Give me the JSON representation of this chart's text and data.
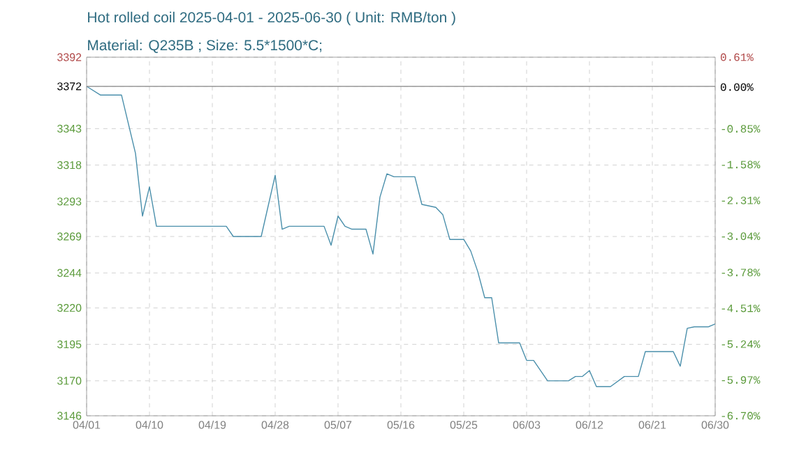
{
  "chart_data": {
    "type": "line",
    "title": "Hot rolled coil 2025-04-01 - 2025-06-30 ( Unit: RMB/ton )",
    "subtitle": "Material: Q235B ; Size: 5.5*1500*C;",
    "x": [
      "2025-04-01",
      "2025-04-03",
      "2025-04-06",
      "2025-04-08",
      "2025-04-09",
      "2025-04-10",
      "2025-04-11",
      "2025-04-21",
      "2025-04-22",
      "2025-04-26",
      "2025-04-28",
      "2025-04-29",
      "2025-04-30",
      "2025-05-05",
      "2025-05-06",
      "2025-05-07",
      "2025-05-08",
      "2025-05-09",
      "2025-05-11",
      "2025-05-12",
      "2025-05-13",
      "2025-05-14",
      "2025-05-15",
      "2025-05-18",
      "2025-05-19",
      "2025-05-21",
      "2025-05-22",
      "2025-05-23",
      "2025-05-25",
      "2025-05-26",
      "2025-05-27",
      "2025-05-28",
      "2025-05-29",
      "2025-05-30",
      "2025-06-02",
      "2025-06-03",
      "2025-06-04",
      "2025-06-06",
      "2025-06-09",
      "2025-06-10",
      "2025-06-11",
      "2025-06-12",
      "2025-06-13",
      "2025-06-15",
      "2025-06-17",
      "2025-06-19",
      "2025-06-20",
      "2025-06-24",
      "2025-06-25",
      "2025-06-26",
      "2025-06-27",
      "2025-06-29",
      "2025-06-30"
    ],
    "series": [
      {
        "color": "#4a8fab",
        "values": [
          3372,
          3366,
          3366,
          3326,
          3283,
          3303,
          3276,
          3276,
          3269,
          3269,
          3311,
          3274,
          3276,
          3276,
          3263,
          3283,
          3276,
          3274,
          3274,
          3257,
          3296,
          3312,
          3310,
          3310,
          3291,
          3289,
          3284,
          3267,
          3267,
          3259,
          3245,
          3227,
          3227,
          3196,
          3196,
          3184,
          3184,
          3170,
          3170,
          3173,
          3173,
          3177,
          3166,
          3166,
          3173,
          3173,
          3190,
          3190,
          3180,
          3206,
          3207,
          3207,
          3209
        ]
      }
    ],
    "xlim": [
      "2025-04-01",
      "2025-06-30"
    ],
    "xticks": [
      {
        "value": "2025-04-01",
        "label": "04/01"
      },
      {
        "value": "2025-04-10",
        "label": "04/10"
      },
      {
        "value": "2025-04-19",
        "label": "04/19"
      },
      {
        "value": "2025-04-28",
        "label": "04/28"
      },
      {
        "value": "2025-05-07",
        "label": "05/07"
      },
      {
        "value": "2025-05-16",
        "label": "05/16"
      },
      {
        "value": "2025-05-25",
        "label": "05/25"
      },
      {
        "value": "2025-06-03",
        "label": "06/03"
      },
      {
        "value": "2025-06-12",
        "label": "06/12"
      },
      {
        "value": "2025-06-21",
        "label": "06/21"
      },
      {
        "value": "2025-06-30",
        "label": "06/30"
      }
    ],
    "ylim": [
      3146,
      3392
    ],
    "yticks": [
      3146,
      3170,
      3195,
      3220,
      3244,
      3269,
      3293,
      3318,
      3343,
      3372,
      3392
    ],
    "y2lim": [
      -6.7,
      0.61
    ],
    "y2ticks": [
      {
        "value": -6.7,
        "label": "-6.70%"
      },
      {
        "value": -5.97,
        "label": "-5.97%"
      },
      {
        "value": -5.24,
        "label": "-5.24%"
      },
      {
        "value": -4.51,
        "label": "-4.51%"
      },
      {
        "value": -3.78,
        "label": "-3.78%"
      },
      {
        "value": -3.04,
        "label": "-3.04%"
      },
      {
        "value": -2.31,
        "label": "-2.31%"
      },
      {
        "value": -1.58,
        "label": "-1.58%"
      },
      {
        "value": -0.85,
        "label": "-0.85%"
      },
      {
        "value": 0.0,
        "label": "0.00%"
      },
      {
        "value": 0.61,
        "label": "0.61%"
      }
    ],
    "ref_lines": [
      {
        "axis": "y",
        "value": 3372,
        "color": "#999999"
      }
    ],
    "grid": true,
    "marker": "none",
    "line_style": "solid"
  }
}
